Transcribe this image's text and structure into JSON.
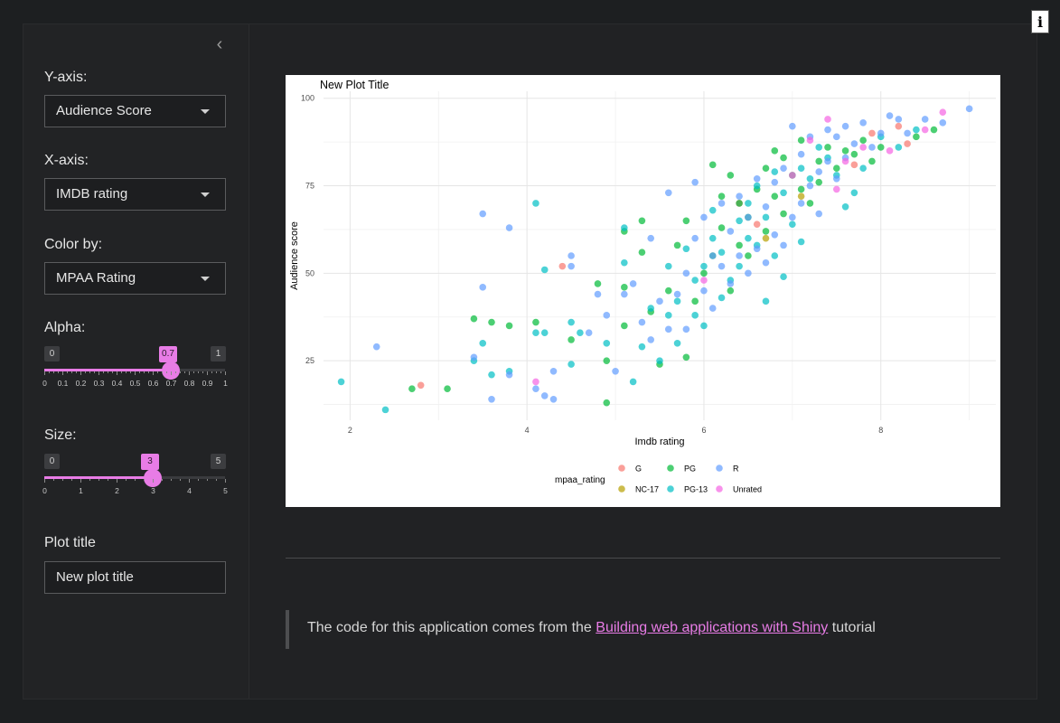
{
  "sidebar": {
    "y_axis": {
      "label": "Y-axis:",
      "value": "Audience Score"
    },
    "x_axis": {
      "label": "X-axis:",
      "value": "IMDB rating"
    },
    "color_by": {
      "label": "Color by:",
      "value": "MPAA Rating"
    },
    "alpha": {
      "label": "Alpha:",
      "min": "0",
      "max": "1",
      "value": "0.7",
      "fraction": 0.7,
      "ticks": [
        "0",
        "0.1",
        "0.2",
        "0.3",
        "0.4",
        "0.5",
        "0.6",
        "0.7",
        "0.8",
        "0.9",
        "1"
      ]
    },
    "size": {
      "label": "Size:",
      "min": "0",
      "max": "5",
      "value": "3",
      "fraction": 0.6,
      "ticks": [
        "0",
        "1",
        "2",
        "3",
        "4",
        "5"
      ]
    },
    "plot_title": {
      "label": "Plot title",
      "value": "New plot title"
    }
  },
  "info_button": {
    "label": "i"
  },
  "collapse_icon": "chevron-left-icon",
  "footer": {
    "prefix": "The code for this application comes from the ",
    "link": "Building web applications with Shiny",
    "suffix": " tutorial"
  },
  "colors": {
    "accent": "#e87ce6",
    "G": "#f8766d",
    "NC-17": "#b79f00",
    "PG": "#00ba38",
    "PG-13": "#00bfc4",
    "R": "#619cff",
    "Unrated": "#f564e3"
  },
  "chart_data": {
    "type": "scatter",
    "title": "New Plot Title",
    "xlabel": "Imdb rating",
    "ylabel": "Audience score",
    "xlim": [
      1.7,
      9.3
    ],
    "ylim": [
      8,
      102
    ],
    "xticks": [
      2,
      4,
      6,
      8
    ],
    "yticks": [
      25,
      50,
      75,
      100
    ],
    "grid": true,
    "legend": {
      "title": "mpaa_rating",
      "position": "bottom",
      "entries": [
        "G",
        "PG",
        "R",
        "NC-17",
        "PG-13",
        "Unrated"
      ]
    },
    "series": [
      {
        "name": "G",
        "points": [
          [
            2.8,
            18
          ],
          [
            4.4,
            52
          ],
          [
            6.4,
            70
          ],
          [
            6.6,
            64
          ],
          [
            7.7,
            81
          ],
          [
            7.9,
            90
          ],
          [
            8.2,
            92
          ],
          [
            8.3,
            87
          ]
        ]
      },
      {
        "name": "NC-17",
        "points": [
          [
            6.7,
            60
          ],
          [
            7.1,
            72
          ]
        ]
      },
      {
        "name": "PG",
        "points": [
          [
            2.7,
            17
          ],
          [
            3.1,
            17
          ],
          [
            3.4,
            37
          ],
          [
            3.6,
            36
          ],
          [
            3.8,
            35
          ],
          [
            4.1,
            36
          ],
          [
            4.5,
            31
          ],
          [
            4.8,
            47
          ],
          [
            4.9,
            25
          ],
          [
            4.9,
            13
          ],
          [
            5.1,
            35
          ],
          [
            5.1,
            46
          ],
          [
            5.1,
            62
          ],
          [
            5.3,
            65
          ],
          [
            5.3,
            56
          ],
          [
            5.4,
            39
          ],
          [
            5.5,
            24
          ],
          [
            5.6,
            45
          ],
          [
            5.7,
            58
          ],
          [
            5.8,
            65
          ],
          [
            5.8,
            26
          ],
          [
            5.9,
            42
          ],
          [
            6.0,
            50
          ],
          [
            6.1,
            81
          ],
          [
            6.1,
            55
          ],
          [
            6.2,
            63
          ],
          [
            6.2,
            72
          ],
          [
            6.3,
            78
          ],
          [
            6.3,
            45
          ],
          [
            6.4,
            70
          ],
          [
            6.4,
            58
          ],
          [
            6.5,
            66
          ],
          [
            6.5,
            55
          ],
          [
            6.6,
            74
          ],
          [
            6.7,
            62
          ],
          [
            6.7,
            80
          ],
          [
            6.8,
            85
          ],
          [
            6.8,
            72
          ],
          [
            6.9,
            67
          ],
          [
            6.9,
            83
          ],
          [
            7.0,
            78
          ],
          [
            7.1,
            88
          ],
          [
            7.1,
            74
          ],
          [
            7.2,
            70
          ],
          [
            7.3,
            82
          ],
          [
            7.3,
            76
          ],
          [
            7.4,
            86
          ],
          [
            7.5,
            80
          ],
          [
            7.6,
            85
          ],
          [
            7.7,
            84
          ],
          [
            7.8,
            88
          ],
          [
            7.9,
            82
          ],
          [
            8.0,
            86
          ],
          [
            8.4,
            89
          ],
          [
            8.6,
            91
          ]
        ]
      },
      {
        "name": "PG-13",
        "points": [
          [
            1.9,
            19
          ],
          [
            2.4,
            11
          ],
          [
            3.4,
            25
          ],
          [
            3.5,
            30
          ],
          [
            3.6,
            21
          ],
          [
            3.8,
            22
          ],
          [
            4.1,
            70
          ],
          [
            4.1,
            33
          ],
          [
            4.2,
            33
          ],
          [
            4.2,
            51
          ],
          [
            4.5,
            36
          ],
          [
            4.5,
            24
          ],
          [
            4.6,
            33
          ],
          [
            4.9,
            30
          ],
          [
            5.1,
            63
          ],
          [
            5.1,
            53
          ],
          [
            5.2,
            19
          ],
          [
            5.3,
            29
          ],
          [
            5.4,
            40
          ],
          [
            5.5,
            25
          ],
          [
            5.6,
            38
          ],
          [
            5.6,
            52
          ],
          [
            5.7,
            30
          ],
          [
            5.7,
            42
          ],
          [
            5.8,
            57
          ],
          [
            5.9,
            38
          ],
          [
            5.9,
            48
          ],
          [
            6.0,
            35
          ],
          [
            6.0,
            52
          ],
          [
            6.1,
            60
          ],
          [
            6.1,
            68
          ],
          [
            6.2,
            43
          ],
          [
            6.2,
            56
          ],
          [
            6.3,
            48
          ],
          [
            6.4,
            65
          ],
          [
            6.4,
            52
          ],
          [
            6.5,
            60
          ],
          [
            6.5,
            70
          ],
          [
            6.6,
            58
          ],
          [
            6.6,
            75
          ],
          [
            6.7,
            42
          ],
          [
            6.7,
            66
          ],
          [
            6.8,
            55
          ],
          [
            6.8,
            79
          ],
          [
            6.9,
            73
          ],
          [
            6.9,
            49
          ],
          [
            7.0,
            64
          ],
          [
            7.1,
            59
          ],
          [
            7.1,
            80
          ],
          [
            7.2,
            77
          ],
          [
            7.3,
            86
          ],
          [
            7.4,
            83
          ],
          [
            7.5,
            78
          ],
          [
            7.6,
            69
          ],
          [
            7.7,
            73
          ],
          [
            7.8,
            80
          ],
          [
            8.0,
            89
          ],
          [
            8.2,
            86
          ],
          [
            8.4,
            91
          ]
        ]
      },
      {
        "name": "R",
        "points": [
          [
            2.3,
            29
          ],
          [
            3.4,
            26
          ],
          [
            3.5,
            67
          ],
          [
            3.5,
            46
          ],
          [
            3.6,
            14
          ],
          [
            3.8,
            63
          ],
          [
            3.8,
            21
          ],
          [
            4.1,
            17
          ],
          [
            4.2,
            15
          ],
          [
            4.3,
            22
          ],
          [
            4.3,
            14
          ],
          [
            4.5,
            55
          ],
          [
            4.5,
            52
          ],
          [
            4.7,
            33
          ],
          [
            4.8,
            44
          ],
          [
            4.9,
            38
          ],
          [
            5.0,
            22
          ],
          [
            5.1,
            44
          ],
          [
            5.2,
            47
          ],
          [
            5.3,
            36
          ],
          [
            5.4,
            31
          ],
          [
            5.4,
            60
          ],
          [
            5.5,
            42
          ],
          [
            5.6,
            34
          ],
          [
            5.6,
            73
          ],
          [
            5.7,
            44
          ],
          [
            5.8,
            34
          ],
          [
            5.8,
            50
          ],
          [
            5.9,
            76
          ],
          [
            5.9,
            60
          ],
          [
            6.0,
            45
          ],
          [
            6.0,
            66
          ],
          [
            6.1,
            40
          ],
          [
            6.1,
            55
          ],
          [
            6.2,
            52
          ],
          [
            6.2,
            70
          ],
          [
            6.3,
            47
          ],
          [
            6.3,
            62
          ],
          [
            6.4,
            55
          ],
          [
            6.4,
            72
          ],
          [
            6.5,
            50
          ],
          [
            6.5,
            66
          ],
          [
            6.6,
            57
          ],
          [
            6.6,
            77
          ],
          [
            6.7,
            53
          ],
          [
            6.7,
            69
          ],
          [
            6.8,
            61
          ],
          [
            6.8,
            76
          ],
          [
            6.9,
            58
          ],
          [
            6.9,
            80
          ],
          [
            7.0,
            66
          ],
          [
            7.0,
            92
          ],
          [
            7.1,
            70
          ],
          [
            7.1,
            84
          ],
          [
            7.2,
            75
          ],
          [
            7.2,
            89
          ],
          [
            7.3,
            79
          ],
          [
            7.3,
            67
          ],
          [
            7.4,
            82
          ],
          [
            7.4,
            91
          ],
          [
            7.5,
            77
          ],
          [
            7.5,
            89
          ],
          [
            7.6,
            83
          ],
          [
            7.6,
            92
          ],
          [
            7.7,
            87
          ],
          [
            7.8,
            93
          ],
          [
            7.9,
            86
          ],
          [
            8.0,
            90
          ],
          [
            8.1,
            95
          ],
          [
            8.2,
            94
          ],
          [
            8.3,
            90
          ],
          [
            8.5,
            94
          ],
          [
            8.7,
            93
          ],
          [
            9.0,
            97
          ]
        ]
      },
      {
        "name": "Unrated",
        "points": [
          [
            4.1,
            19
          ],
          [
            6.0,
            48
          ],
          [
            7.0,
            78
          ],
          [
            7.2,
            88
          ],
          [
            7.4,
            94
          ],
          [
            7.5,
            74
          ],
          [
            7.6,
            82
          ],
          [
            7.8,
            86
          ],
          [
            8.1,
            85
          ],
          [
            8.5,
            91
          ],
          [
            8.7,
            96
          ]
        ]
      }
    ]
  }
}
